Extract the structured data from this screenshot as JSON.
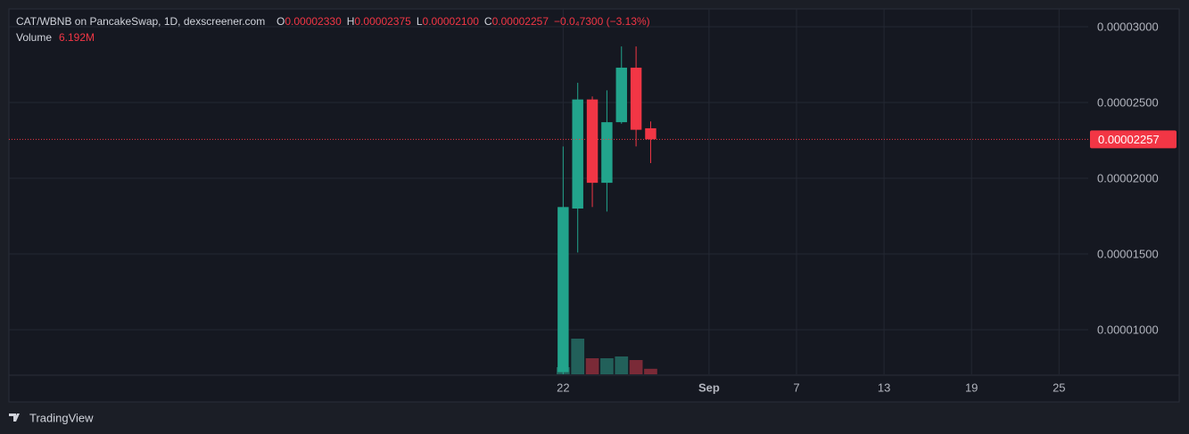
{
  "chart_data": {
    "type": "candlestick",
    "title": "CAT/WBNB on PancakeSwap, 1D, dexscreener.com",
    "legend": [
      {
        "key": "O",
        "value": "0.00002330"
      },
      {
        "key": "H",
        "value": "0.00002375"
      },
      {
        "key": "L",
        "value": "0.00002100"
      },
      {
        "key": "C",
        "value": "0.00002257"
      }
    ],
    "change": "−0.0₄7300 (−3.13%)",
    "volume_label": "Volume",
    "volume_value_label": "6.192M",
    "x": [
      "08-22",
      "08-23",
      "08-24",
      "08-25",
      "08-26",
      "08-27",
      "08-28"
    ],
    "open": [
      7.2e-06,
      1.8e-05,
      2.52e-05,
      1.97e-05,
      2.37e-05,
      2.73e-05,
      2.33e-05
    ],
    "high": [
      2.21e-05,
      2.63e-05,
      2.54e-05,
      2.58e-05,
      2.87e-05,
      2.87e-05,
      2.375e-05
    ],
    "low": [
      7e-06,
      1.51e-05,
      1.81e-05,
      1.78e-05,
      2.36e-05,
      2.21e-05,
      2.1e-05
    ],
    "close": [
      1.81e-05,
      2.52e-05,
      1.97e-05,
      2.37e-05,
      2.73e-05,
      2.32e-05,
      2.257e-05
    ],
    "volume": [
      8000000,
      40000000,
      18000000,
      18000000,
      20000000,
      16000000,
      6192000
    ],
    "up_color": "#22a48c",
    "down_color": "#f23645",
    "up_volume_color": "#22605a",
    "down_volume_color": "#7a2a37",
    "xlim": [
      "07-15",
      "09-27"
    ],
    "xticks": [
      {
        "value": "08-22",
        "label": "22"
      },
      {
        "value": "09-01",
        "label": "Sep"
      },
      {
        "value": "09-07",
        "label": "7"
      },
      {
        "value": "09-13",
        "label": "13"
      },
      {
        "value": "09-19",
        "label": "19"
      },
      {
        "value": "09-25",
        "label": "25"
      }
    ],
    "ylim": [
      7.06e-06,
      3.106e-05
    ],
    "yticks": [
      {
        "value": 1e-05,
        "label": "0.00001000"
      },
      {
        "value": 1.5e-05,
        "label": "0.00001500"
      },
      {
        "value": 2e-05,
        "label": "0.00002000"
      },
      {
        "value": 2.5e-05,
        "label": "0.00002500"
      },
      {
        "value": 3e-05,
        "label": "0.00003000"
      }
    ],
    "grid": true,
    "branding": "TradingView"
  }
}
